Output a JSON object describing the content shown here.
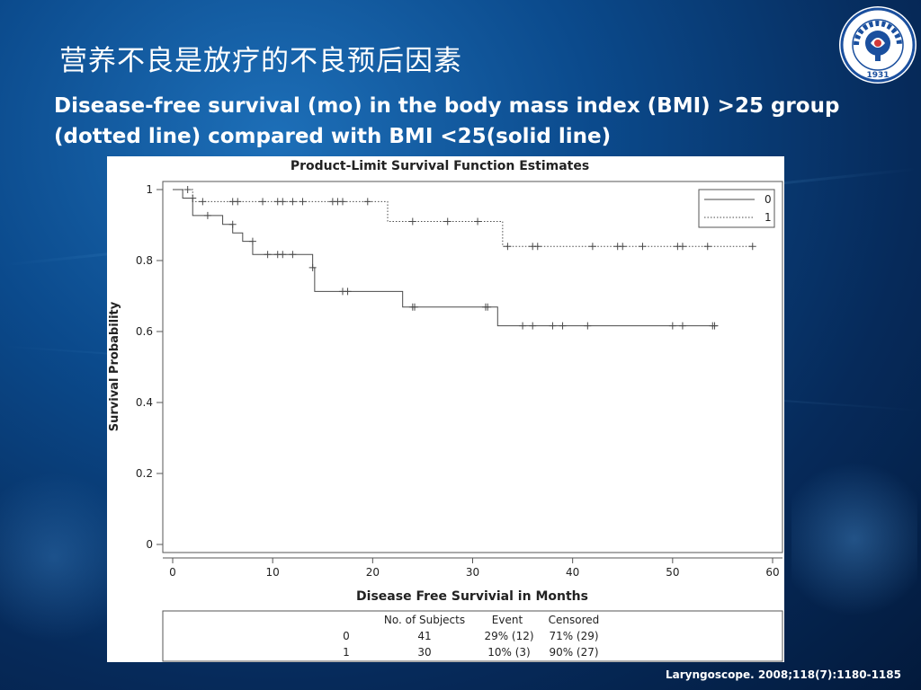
{
  "slide": {
    "title": "营养不良是放疗的不良预后因素",
    "subtitle_line1": "Disease-free survival (mo) in the body mass index (BMI) >25 group",
    "subtitle_line2": "(dotted line) compared with BMI <25(solid line)",
    "citation": "Laryngoscope. 2008;118(7):1180-1185",
    "logo_year": "1931"
  },
  "colors": {
    "background": "#0b4a8c",
    "text": "#ffffff",
    "chart_line": "#4a4a4a",
    "chart_bg": "#ffffff"
  },
  "chart_data": {
    "type": "line",
    "title": "Product-Limit Survival Function Estimates",
    "xlabel": "Disease Free Survivial in Months",
    "ylabel": "Survival Probability",
    "xlim": [
      0,
      60
    ],
    "ylim": [
      0,
      1
    ],
    "xticks": [
      0,
      10,
      20,
      30,
      40,
      50,
      60
    ],
    "yticks": [
      0,
      0.2,
      0.4,
      0.6,
      0.8,
      1
    ],
    "legend_position": "top-right",
    "series": [
      {
        "name": "0",
        "style": "solid",
        "x": [
          0,
          1.0,
          2.0,
          5.0,
          6.0,
          7.0,
          8.0,
          14.0,
          14.2,
          23.0,
          32.5,
          54.5
        ],
        "y": [
          1.0,
          0.976,
          0.927,
          0.902,
          0.878,
          0.854,
          0.817,
          0.78,
          0.713,
          0.669,
          0.616,
          0.616
        ],
        "censored_x": [
          2.0,
          3.5,
          6.0,
          8.0,
          9.5,
          10.5,
          11.0,
          12.0,
          14.0,
          17.0,
          17.5,
          24.0,
          24.2,
          31.3,
          31.5,
          35.0,
          36.0,
          38.0,
          39.0,
          41.5,
          50.0,
          51.0,
          54.0,
          54.2
        ],
        "censored_y": [
          0.976,
          0.927,
          0.902,
          0.854,
          0.817,
          0.817,
          0.817,
          0.817,
          0.78,
          0.713,
          0.713,
          0.669,
          0.669,
          0.669,
          0.669,
          0.616,
          0.616,
          0.616,
          0.616,
          0.616,
          0.616,
          0.616,
          0.616,
          0.616
        ]
      },
      {
        "name": "1",
        "style": "dotted",
        "x": [
          0,
          2.0,
          21.5,
          33.0,
          58.0
        ],
        "y": [
          1.0,
          0.966,
          0.91,
          0.84,
          0.84
        ],
        "censored_x": [
          1.5,
          3.0,
          6.0,
          6.5,
          9.0,
          10.5,
          11.0,
          12.0,
          13.0,
          16.0,
          16.5,
          17.0,
          19.5,
          24.0,
          27.5,
          30.5,
          33.5,
          36.0,
          36.5,
          42.0,
          44.5,
          45.0,
          47.0,
          50.5,
          51.0,
          53.5,
          58.0
        ],
        "censored_y": [
          1.0,
          0.966,
          0.966,
          0.966,
          0.966,
          0.966,
          0.966,
          0.966,
          0.966,
          0.966,
          0.966,
          0.966,
          0.966,
          0.91,
          0.91,
          0.91,
          0.84,
          0.84,
          0.84,
          0.84,
          0.84,
          0.84,
          0.84,
          0.84,
          0.84,
          0.84,
          0.84
        ]
      }
    ],
    "summary_table": {
      "headers": [
        "",
        "No. of Subjects",
        "Event",
        "Censored"
      ],
      "rows": [
        [
          "0",
          "41",
          "29% (12)",
          "71% (29)"
        ],
        [
          "1",
          "30",
          "10% (3)",
          "90% (27)"
        ]
      ]
    }
  }
}
